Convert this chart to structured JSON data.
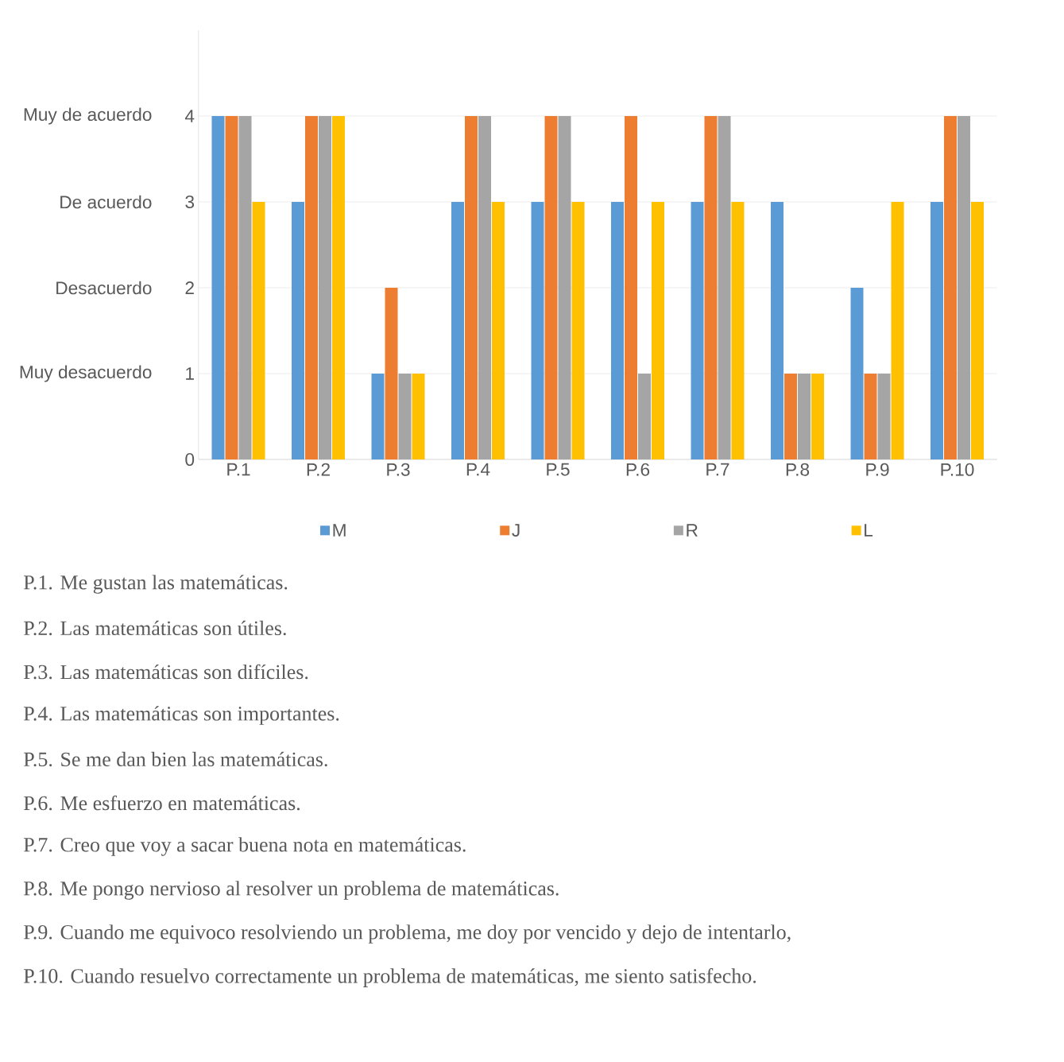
{
  "chart_data": {
    "type": "bar",
    "categories": [
      "P.1",
      "P.2",
      "P.3",
      "P.4",
      "P.5",
      "P.6",
      "P.7",
      "P.8",
      "P.9",
      "P.10"
    ],
    "series": [
      {
        "name": "M",
        "color": "#5b9bd5",
        "values": [
          4,
          3,
          1,
          3,
          3,
          3,
          3,
          3,
          2,
          3
        ]
      },
      {
        "name": "J",
        "color": "#ed7d31",
        "values": [
          4,
          4,
          2,
          4,
          4,
          4,
          4,
          1,
          1,
          4
        ]
      },
      {
        "name": "R",
        "color": "#a5a5a5",
        "values": [
          4,
          4,
          1,
          4,
          4,
          1,
          4,
          1,
          1,
          4
        ]
      },
      {
        "name": "L",
        "color": "#ffc000",
        "values": [
          3,
          4,
          1,
          3,
          3,
          3,
          3,
          1,
          3,
          3
        ]
      }
    ],
    "ylim": [
      0,
      5
    ],
    "yticks": [
      0,
      1,
      2,
      3,
      4
    ],
    "grid": "y",
    "legend": "bottom",
    "annotations": [
      "Muy de acuerdo",
      "De acuerdo",
      "Desacuerdo",
      "Muy desacuerdo",
      "P.1. Me gustan las matemáticas.",
      "P.2. Las matemáticas son útiles.",
      "P.3. Las matemáticas son difíciles.",
      "P.4. Las matemáticas son importantes.",
      "P.5. Se me dan bien las matemáticas.",
      "P.6. Me esfuerzo en matemáticas.",
      "P.7. Creo que voy a sacar buena nota en matemáticas.",
      "P.8. Me pongo nervioso al resolver un problema de matemáticas.",
      "P.9. Cuando me equivoco resolviendo un problema, me doy por vencido y dejo de intentarlo,",
      "P.10. Cuando resuelvo correctamente un problema de matemáticas, me siento satisfecho."
    ]
  }
}
